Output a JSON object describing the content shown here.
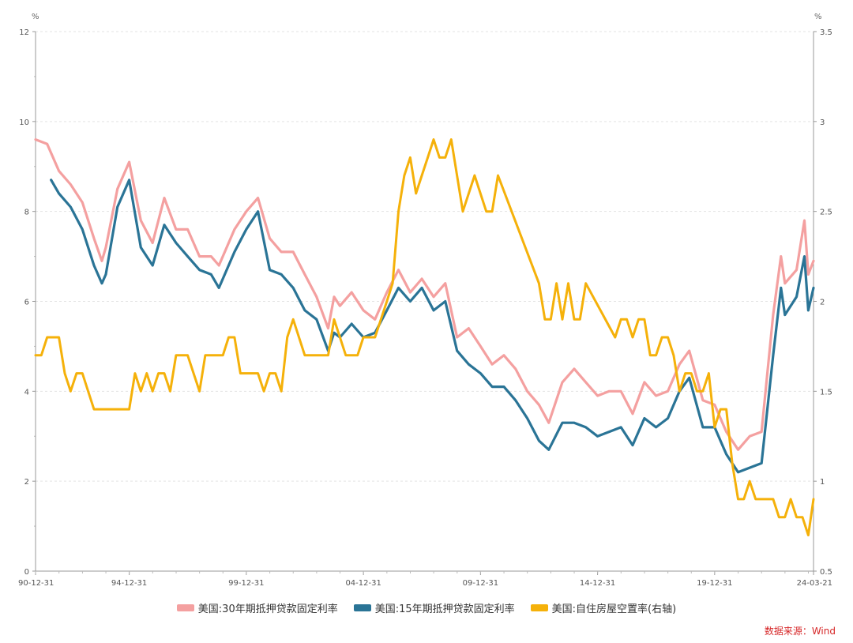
{
  "chart_data": {
    "type": "line",
    "left_axis": {
      "unit": "%",
      "min": 0,
      "max": 12,
      "ticks": [
        0,
        2,
        4,
        6,
        8,
        10,
        12
      ]
    },
    "right_axis": {
      "unit": "%",
      "min": 0.5,
      "max": 3.5,
      "ticks": [
        0.5,
        1,
        1.5,
        2,
        2.5,
        3,
        3.5
      ]
    },
    "x_axis": {
      "min": "1990-12-31",
      "max": "2024-03-21",
      "tick_labels": [
        "90-12-31",
        "94-12-31",
        "99-12-31",
        "04-12-31",
        "09-12-31",
        "14-12-31",
        "19-12-31",
        "24-03-21"
      ]
    },
    "grid": true,
    "legend_position": "bottom",
    "series": [
      {
        "name": "美国:30年期抵押贷款固定利率",
        "axis": "left",
        "color": "#f4a0a0",
        "points": [
          [
            "1990-12-31",
            9.6
          ],
          [
            "1991-06-30",
            9.5
          ],
          [
            "1991-12-31",
            8.9
          ],
          [
            "1992-06-30",
            8.6
          ],
          [
            "1992-12-31",
            8.2
          ],
          [
            "1993-06-30",
            7.4
          ],
          [
            "1993-10-31",
            6.9
          ],
          [
            "1993-12-31",
            7.2
          ],
          [
            "1994-06-30",
            8.5
          ],
          [
            "1994-12-31",
            9.1
          ],
          [
            "1995-06-30",
            7.8
          ],
          [
            "1995-12-31",
            7.3
          ],
          [
            "1996-06-30",
            8.3
          ],
          [
            "1996-12-31",
            7.6
          ],
          [
            "1997-06-30",
            7.6
          ],
          [
            "1997-12-31",
            7.0
          ],
          [
            "1998-06-30",
            7.0
          ],
          [
            "1998-10-31",
            6.8
          ],
          [
            "1999-06-30",
            7.6
          ],
          [
            "1999-12-31",
            8.0
          ],
          [
            "2000-06-30",
            8.3
          ],
          [
            "2000-12-31",
            7.4
          ],
          [
            "2001-06-30",
            7.1
          ],
          [
            "2001-12-31",
            7.1
          ],
          [
            "2002-06-30",
            6.6
          ],
          [
            "2002-12-31",
            6.1
          ],
          [
            "2003-06-30",
            5.4
          ],
          [
            "2003-09-30",
            6.1
          ],
          [
            "2003-12-31",
            5.9
          ],
          [
            "2004-06-30",
            6.2
          ],
          [
            "2004-12-31",
            5.8
          ],
          [
            "2005-06-30",
            5.6
          ],
          [
            "2005-12-31",
            6.2
          ],
          [
            "2006-06-30",
            6.7
          ],
          [
            "2006-12-31",
            6.2
          ],
          [
            "2007-06-30",
            6.5
          ],
          [
            "2007-12-31",
            6.1
          ],
          [
            "2008-06-30",
            6.4
          ],
          [
            "2008-12-31",
            5.2
          ],
          [
            "2009-06-30",
            5.4
          ],
          [
            "2009-12-31",
            5.0
          ],
          [
            "2010-06-30",
            4.6
          ],
          [
            "2010-12-31",
            4.8
          ],
          [
            "2011-06-30",
            4.5
          ],
          [
            "2011-12-31",
            4.0
          ],
          [
            "2012-06-30",
            3.7
          ],
          [
            "2012-11-30",
            3.3
          ],
          [
            "2013-06-30",
            4.2
          ],
          [
            "2013-12-31",
            4.5
          ],
          [
            "2014-06-30",
            4.2
          ],
          [
            "2014-12-31",
            3.9
          ],
          [
            "2015-06-30",
            4.0
          ],
          [
            "2015-12-31",
            4.0
          ],
          [
            "2016-06-30",
            3.5
          ],
          [
            "2016-12-31",
            4.2
          ],
          [
            "2017-06-30",
            3.9
          ],
          [
            "2017-12-31",
            4.0
          ],
          [
            "2018-06-30",
            4.6
          ],
          [
            "2018-11-30",
            4.9
          ],
          [
            "2019-06-30",
            3.8
          ],
          [
            "2019-12-31",
            3.7
          ],
          [
            "2020-06-30",
            3.1
          ],
          [
            "2020-12-31",
            2.7
          ],
          [
            "2021-06-30",
            3.0
          ],
          [
            "2021-12-31",
            3.1
          ],
          [
            "2022-06-30",
            5.7
          ],
          [
            "2022-10-31",
            7.0
          ],
          [
            "2022-12-31",
            6.4
          ],
          [
            "2023-06-30",
            6.7
          ],
          [
            "2023-10-31",
            7.8
          ],
          [
            "2023-12-31",
            6.6
          ],
          [
            "2024-03-21",
            6.9
          ]
        ]
      },
      {
        "name": "美国:15年期抵押贷款固定利率",
        "axis": "left",
        "color": "#2a7496",
        "points": [
          [
            "1991-08-31",
            8.7
          ],
          [
            "1991-12-31",
            8.4
          ],
          [
            "1992-06-30",
            8.1
          ],
          [
            "1992-12-31",
            7.6
          ],
          [
            "1993-06-30",
            6.8
          ],
          [
            "1993-10-31",
            6.4
          ],
          [
            "1993-12-31",
            6.6
          ],
          [
            "1994-06-30",
            8.1
          ],
          [
            "1994-12-31",
            8.7
          ],
          [
            "1995-06-30",
            7.2
          ],
          [
            "1995-12-31",
            6.8
          ],
          [
            "1996-06-30",
            7.7
          ],
          [
            "1996-12-31",
            7.3
          ],
          [
            "1997-06-30",
            7.0
          ],
          [
            "1997-12-31",
            6.7
          ],
          [
            "1998-06-30",
            6.6
          ],
          [
            "1998-10-31",
            6.3
          ],
          [
            "1999-06-30",
            7.1
          ],
          [
            "1999-12-31",
            7.6
          ],
          [
            "2000-06-30",
            8.0
          ],
          [
            "2000-12-31",
            6.7
          ],
          [
            "2001-06-30",
            6.6
          ],
          [
            "2001-12-31",
            6.3
          ],
          [
            "2002-06-30",
            5.8
          ],
          [
            "2002-12-31",
            5.6
          ],
          [
            "2003-06-30",
            4.9
          ],
          [
            "2003-09-30",
            5.3
          ],
          [
            "2003-12-31",
            5.2
          ],
          [
            "2004-06-30",
            5.5
          ],
          [
            "2004-12-31",
            5.2
          ],
          [
            "2005-06-30",
            5.3
          ],
          [
            "2005-12-31",
            5.8
          ],
          [
            "2006-06-30",
            6.3
          ],
          [
            "2006-12-31",
            6.0
          ],
          [
            "2007-06-30",
            6.3
          ],
          [
            "2007-12-31",
            5.8
          ],
          [
            "2008-06-30",
            6.0
          ],
          [
            "2008-12-31",
            4.9
          ],
          [
            "2009-06-30",
            4.6
          ],
          [
            "2009-12-31",
            4.4
          ],
          [
            "2010-06-30",
            4.1
          ],
          [
            "2010-12-31",
            4.1
          ],
          [
            "2011-06-30",
            3.8
          ],
          [
            "2011-12-31",
            3.4
          ],
          [
            "2012-06-30",
            2.9
          ],
          [
            "2012-11-30",
            2.7
          ],
          [
            "2013-06-30",
            3.3
          ],
          [
            "2013-12-31",
            3.3
          ],
          [
            "2014-06-30",
            3.2
          ],
          [
            "2014-12-31",
            3.0
          ],
          [
            "2015-06-30",
            3.1
          ],
          [
            "2015-12-31",
            3.2
          ],
          [
            "2016-06-30",
            2.8
          ],
          [
            "2016-12-31",
            3.4
          ],
          [
            "2017-06-30",
            3.2
          ],
          [
            "2017-12-31",
            3.4
          ],
          [
            "2018-06-30",
            4.0
          ],
          [
            "2018-11-30",
            4.3
          ],
          [
            "2019-06-30",
            3.2
          ],
          [
            "2019-12-31",
            3.2
          ],
          [
            "2020-06-30",
            2.6
          ],
          [
            "2020-12-31",
            2.2
          ],
          [
            "2021-06-30",
            2.3
          ],
          [
            "2021-12-31",
            2.4
          ],
          [
            "2022-06-30",
            4.8
          ],
          [
            "2022-10-31",
            6.3
          ],
          [
            "2022-12-31",
            5.7
          ],
          [
            "2023-06-30",
            6.1
          ],
          [
            "2023-10-31",
            7.0
          ],
          [
            "2023-12-31",
            5.8
          ],
          [
            "2024-03-21",
            6.3
          ]
        ]
      },
      {
        "name": "美国:自住房屋空置率(右轴)",
        "axis": "right",
        "color": "#f5b10a",
        "points": [
          [
            "1990-12-31",
            1.7
          ],
          [
            "1991-03-31",
            1.7
          ],
          [
            "1991-06-30",
            1.8
          ],
          [
            "1991-12-31",
            1.8
          ],
          [
            "1992-03-31",
            1.6
          ],
          [
            "1992-06-30",
            1.5
          ],
          [
            "1992-09-30",
            1.6
          ],
          [
            "1992-12-31",
            1.6
          ],
          [
            "1993-03-31",
            1.5
          ],
          [
            "1993-06-30",
            1.4
          ],
          [
            "1994-06-30",
            1.4
          ],
          [
            "1994-12-31",
            1.4
          ],
          [
            "1995-03-31",
            1.6
          ],
          [
            "1995-06-30",
            1.5
          ],
          [
            "1995-09-30",
            1.6
          ],
          [
            "1995-12-31",
            1.5
          ],
          [
            "1996-03-31",
            1.6
          ],
          [
            "1996-06-30",
            1.6
          ],
          [
            "1996-09-30",
            1.5
          ],
          [
            "1996-12-31",
            1.7
          ],
          [
            "1997-06-30",
            1.7
          ],
          [
            "1997-09-30",
            1.6
          ],
          [
            "1997-12-31",
            1.5
          ],
          [
            "1998-03-31",
            1.7
          ],
          [
            "1998-12-31",
            1.7
          ],
          [
            "1999-03-31",
            1.8
          ],
          [
            "1999-06-30",
            1.8
          ],
          [
            "1999-09-30",
            1.6
          ],
          [
            "2000-06-30",
            1.6
          ],
          [
            "2000-09-30",
            1.5
          ],
          [
            "2000-12-31",
            1.6
          ],
          [
            "2001-03-31",
            1.6
          ],
          [
            "2001-06-30",
            1.5
          ],
          [
            "2001-09-30",
            1.8
          ],
          [
            "2001-12-31",
            1.9
          ],
          [
            "2002-06-30",
            1.7
          ],
          [
            "2002-12-31",
            1.7
          ],
          [
            "2003-06-30",
            1.7
          ],
          [
            "2003-09-30",
            1.9
          ],
          [
            "2003-12-31",
            1.8
          ],
          [
            "2004-03-31",
            1.7
          ],
          [
            "2004-09-30",
            1.7
          ],
          [
            "2004-12-31",
            1.8
          ],
          [
            "2005-06-30",
            1.8
          ],
          [
            "2005-09-30",
            1.9
          ],
          [
            "2005-12-31",
            2.0
          ],
          [
            "2006-03-31",
            2.1
          ],
          [
            "2006-06-30",
            2.5
          ],
          [
            "2006-09-30",
            2.7
          ],
          [
            "2006-12-31",
            2.8
          ],
          [
            "2007-03-31",
            2.6
          ],
          [
            "2007-06-30",
            2.7
          ],
          [
            "2007-09-30",
            2.8
          ],
          [
            "2007-12-31",
            2.9
          ],
          [
            "2008-03-31",
            2.8
          ],
          [
            "2008-06-30",
            2.8
          ],
          [
            "2008-09-30",
            2.9
          ],
          [
            "2009-03-31",
            2.5
          ],
          [
            "2009-09-30",
            2.7
          ],
          [
            "2010-03-31",
            2.5
          ],
          [
            "2010-06-30",
            2.5
          ],
          [
            "2010-09-30",
            2.7
          ],
          [
            "2012-06-30",
            2.1
          ],
          [
            "2012-09-30",
            1.9
          ],
          [
            "2012-12-31",
            1.9
          ],
          [
            "2013-03-31",
            2.1
          ],
          [
            "2013-06-30",
            1.9
          ],
          [
            "2013-09-30",
            2.1
          ],
          [
            "2013-12-31",
            1.9
          ],
          [
            "2014-03-31",
            1.9
          ],
          [
            "2014-06-30",
            2.1
          ],
          [
            "2015-09-30",
            1.8
          ],
          [
            "2015-12-31",
            1.9
          ],
          [
            "2016-03-31",
            1.9
          ],
          [
            "2016-06-30",
            1.8
          ],
          [
            "2016-09-30",
            1.9
          ],
          [
            "2016-12-31",
            1.9
          ],
          [
            "2017-03-31",
            1.7
          ],
          [
            "2017-06-30",
            1.7
          ],
          [
            "2017-09-30",
            1.8
          ],
          [
            "2017-12-31",
            1.8
          ],
          [
            "2018-03-31",
            1.7
          ],
          [
            "2018-06-30",
            1.5
          ],
          [
            "2018-09-30",
            1.6
          ],
          [
            "2018-12-31",
            1.6
          ],
          [
            "2019-03-31",
            1.5
          ],
          [
            "2019-06-30",
            1.5
          ],
          [
            "2019-09-30",
            1.6
          ],
          [
            "2019-12-31",
            1.3
          ],
          [
            "2020-03-31",
            1.4
          ],
          [
            "2020-06-30",
            1.4
          ],
          [
            "2020-09-30",
            1.1
          ],
          [
            "2020-12-31",
            0.9
          ],
          [
            "2021-03-31",
            0.9
          ],
          [
            "2021-06-30",
            1.0
          ],
          [
            "2021-09-30",
            0.9
          ],
          [
            "2022-06-30",
            0.9
          ],
          [
            "2022-09-30",
            0.8
          ],
          [
            "2022-12-31",
            0.8
          ],
          [
            "2023-03-31",
            0.9
          ],
          [
            "2023-06-30",
            0.8
          ],
          [
            "2023-09-30",
            0.8
          ],
          [
            "2023-12-31",
            0.7
          ],
          [
            "2024-03-21",
            0.9
          ]
        ]
      }
    ],
    "source": "数据来源：Wind"
  }
}
